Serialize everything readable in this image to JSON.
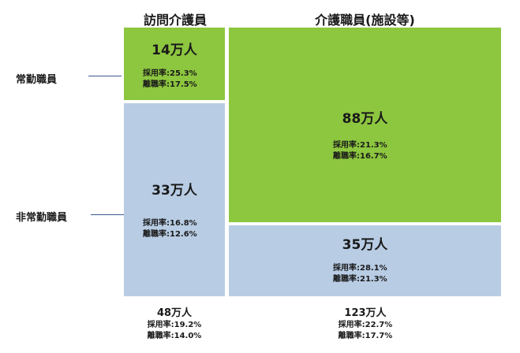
{
  "chart_data": {
    "type": "table",
    "columns": [
      "訪問介護員",
      "介護職員(施設等)"
    ],
    "rows": [
      "常勤職員",
      "非常勤職員"
    ],
    "cells": [
      [
        {
          "count": "14万人",
          "hire_rate": "採用率:25.3%",
          "leave_rate": "離職率:17.5%"
        },
        {
          "count": "88万人",
          "hire_rate": "採用率:21.3%",
          "leave_rate": "離職率:16.7%"
        }
      ],
      [
        {
          "count": "33万人",
          "hire_rate": "採用率:16.8%",
          "leave_rate": "離職率:12.6%"
        },
        {
          "count": "35万人",
          "hire_rate": "採用率:28.1%",
          "leave_rate": "離職率:21.3%"
        }
      ]
    ],
    "totals": [
      {
        "count": "48万人",
        "hire_rate": "採用率:19.2%",
        "leave_rate": "離職率:14.0%"
      },
      {
        "count": "123万人",
        "hire_rate": "採用率:22.7%",
        "leave_rate": "離職率:17.7%"
      }
    ],
    "colors": {
      "full_time": "#8dc63f",
      "part_time": "#b8cce4"
    }
  }
}
